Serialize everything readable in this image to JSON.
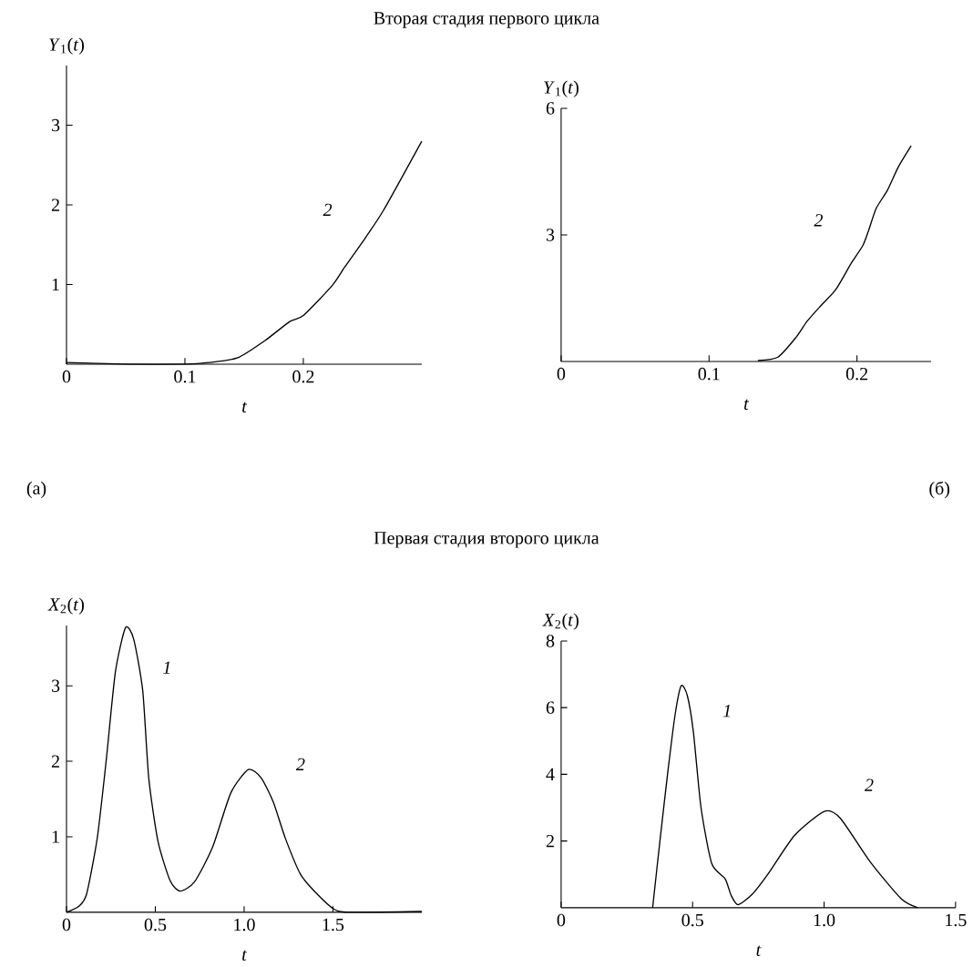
{
  "chart_data": [
    {
      "type": "line",
      "title": "Вторая стадия первого цикла",
      "xlabel": "t",
      "ylabel": "*Y*$_{1}$(*t*)",
      "color": "#000000",
      "x": [
        0,
        0.05,
        0.1,
        0.12,
        0.1446,
        0.168,
        0.188,
        0.2,
        0.2245,
        0.235,
        0.253,
        0.268,
        0.3
      ],
      "values": [
        0.02,
        0,
        0,
        0.02,
        0.08,
        0.3,
        0.53,
        0.61,
        0.99,
        1.22,
        1.6,
        1.94,
        2.8
      ],
      "xlim": [
        0,
        0.3
      ],
      "ylim": [
        0,
        3.75
      ],
      "xticks": [
        0,
        0.1,
        0.2
      ],
      "yticks": [
        1,
        2,
        3
      ],
      "annotations": [
        "2",
        "(а)"
      ]
    },
    {
      "type": "line",
      "xlabel": "t",
      "ylabel": "*Y*$_{1}$(*t*)",
      "color": "#000000",
      "x": [
        0.133,
        0.1465,
        0.159,
        0.166,
        0.175,
        0.1856,
        0.196,
        0.204,
        0.208,
        0.213,
        0.2206,
        0.2278,
        0.2366
      ],
      "values": [
        0.02,
        0.1,
        0.58,
        0.94,
        1.3,
        1.7,
        2.32,
        2.75,
        3.12,
        3.63,
        4.06,
        4.6,
        5.11
      ],
      "xlim": [
        0,
        0.25
      ],
      "ylim": [
        0,
        6
      ],
      "xticks": [
        0,
        0.1,
        0.2
      ],
      "yticks": [
        3,
        6
      ],
      "annotations": [
        "2",
        "(б)"
      ]
    },
    {
      "type": "line",
      "title": "Первая стадия второго цикла",
      "xlabel": "t",
      "ylabel": "*X*$_{2}$(*t*)",
      "color": "#000000",
      "x": [
        0,
        0.07,
        0.113,
        0.173,
        0.224,
        0.275,
        0.332,
        0.378,
        0.429,
        0.463,
        0.515,
        0.583,
        0.639,
        0.72,
        0.822,
        0.925,
        1.024,
        1.096,
        1.164,
        1.232,
        1.318,
        1.403,
        1.506,
        1.59,
        2.0
      ],
      "values": [
        0,
        0.08,
        0.24,
        0.98,
        2.02,
        3.18,
        3.77,
        3.62,
        2.94,
        1.78,
        0.94,
        0.42,
        0.28,
        0.4,
        0.86,
        1.58,
        1.89,
        1.78,
        1.46,
        0.98,
        0.5,
        0.26,
        0.04,
        0,
        0.01
      ],
      "xlim": [
        0,
        2
      ],
      "ylim": [
        0,
        3.8
      ],
      "xticks": [
        0,
        0.5,
        {
          "value": 1,
          "label": "1.0"
        },
        1.5
      ],
      "yticks": [
        1,
        2,
        3
      ],
      "annotations": [
        "1",
        "2"
      ]
    },
    {
      "type": "line",
      "xlabel": "t",
      "ylabel": "*X*$_{2}$(*t*)",
      "color": "#000000",
      "x": [
        0.348,
        0.377,
        0.406,
        0.434,
        0.457,
        0.48,
        0.503,
        0.532,
        0.573,
        0.624,
        0.647,
        0.673,
        0.728,
        0.786,
        0.889,
        1.001,
        1.062,
        1.177,
        1.293,
        1.356
      ],
      "values": [
        0,
        2.09,
        4.09,
        5.82,
        6.66,
        6.36,
        5.27,
        3.0,
        1.32,
        0.86,
        0.36,
        0.09,
        0.41,
        1.0,
        2.18,
        2.89,
        2.68,
        1.36,
        0.27,
        0
      ],
      "xlim": [
        0,
        1.5
      ],
      "ylim": [
        0,
        8
      ],
      "xticks": [
        0,
        0.5,
        {
          "value": 1,
          "label": "1.0"
        },
        1.5
      ],
      "yticks": [
        2,
        4,
        6,
        8
      ],
      "annotations": [
        "1",
        "2"
      ]
    }
  ]
}
